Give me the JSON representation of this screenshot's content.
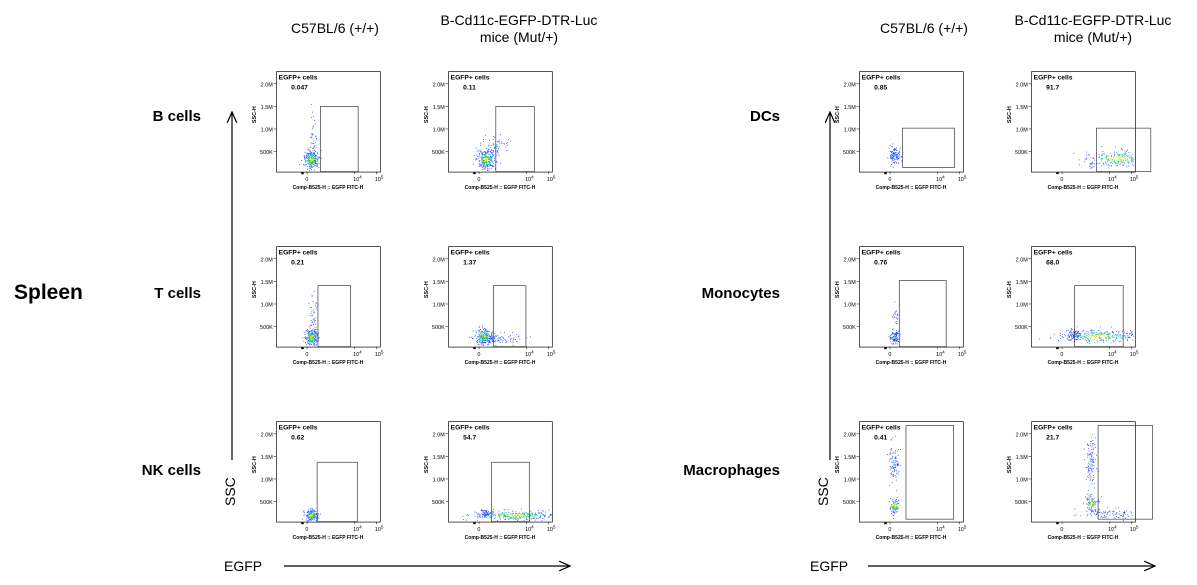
{
  "tissue_label": "Spleen",
  "axis_arrow_labels": {
    "x": "EGFP",
    "y": "SSC"
  },
  "column_headers": [
    "C57BL/6 (+/+)",
    "B-Cd11c-EGFP-DTR-Luc mice (Mut/+)",
    "C57BL/6 (+/+)",
    "B-Cd11c-EGFP-DTR-Luc mice (Mut/+)"
  ],
  "row_labels": {
    "left": [
      "B cells",
      "T cells",
      "NK cells"
    ],
    "right": [
      "DCs",
      "Monocytes",
      "Macrophages"
    ]
  },
  "chart_data": {
    "type": "scatter",
    "description_axes": {
      "xlabel": "Comp-B525-H :: EGFP FITC-H",
      "ylabel": "SSC-H",
      "x_tick_labels": [
        "0",
        "10^4",
        "10^5"
      ],
      "y_tick_labels": [
        "500K",
        "1.0M",
        "1.5M",
        "2.0M"
      ]
    },
    "gate_name": "EGFP+ cells",
    "panels": [
      {
        "cell_type": "B cells",
        "strain": "C57BL/6 (+/+)",
        "egfp_pos_percent": "0.047"
      },
      {
        "cell_type": "B cells",
        "strain": "B-Cd11c-EGFP-DTR-Luc mice (Mut/+)",
        "egfp_pos_percent": "0.11"
      },
      {
        "cell_type": "T cells",
        "strain": "C57BL/6 (+/+)",
        "egfp_pos_percent": "0.21"
      },
      {
        "cell_type": "T cells",
        "strain": "B-Cd11c-EGFP-DTR-Luc mice (Mut/+)",
        "egfp_pos_percent": "1.37"
      },
      {
        "cell_type": "NK cells",
        "strain": "C57BL/6 (+/+)",
        "egfp_pos_percent": "0.62"
      },
      {
        "cell_type": "NK cells",
        "strain": "B-Cd11c-EGFP-DTR-Luc mice (Mut/+)",
        "egfp_pos_percent": "54.7"
      },
      {
        "cell_type": "DCs",
        "strain": "C57BL/6 (+/+)",
        "egfp_pos_percent": "0.85"
      },
      {
        "cell_type": "DCs",
        "strain": "B-Cd11c-EGFP-DTR-Luc mice (Mut/+)",
        "egfp_pos_percent": "91.7"
      },
      {
        "cell_type": "Monocytes",
        "strain": "C57BL/6 (+/+)",
        "egfp_pos_percent": "0.76"
      },
      {
        "cell_type": "Monocytes",
        "strain": "B-Cd11c-EGFP-DTR-Luc mice (Mut/+)",
        "egfp_pos_percent": "68.0"
      },
      {
        "cell_type": "Macrophages",
        "strain": "C57BL/6 (+/+)",
        "egfp_pos_percent": "0.41"
      },
      {
        "cell_type": "Macrophages",
        "strain": "B-Cd11c-EGFP-DTR-Luc mice (Mut/+)",
        "egfp_pos_percent": "21.7"
      }
    ]
  }
}
